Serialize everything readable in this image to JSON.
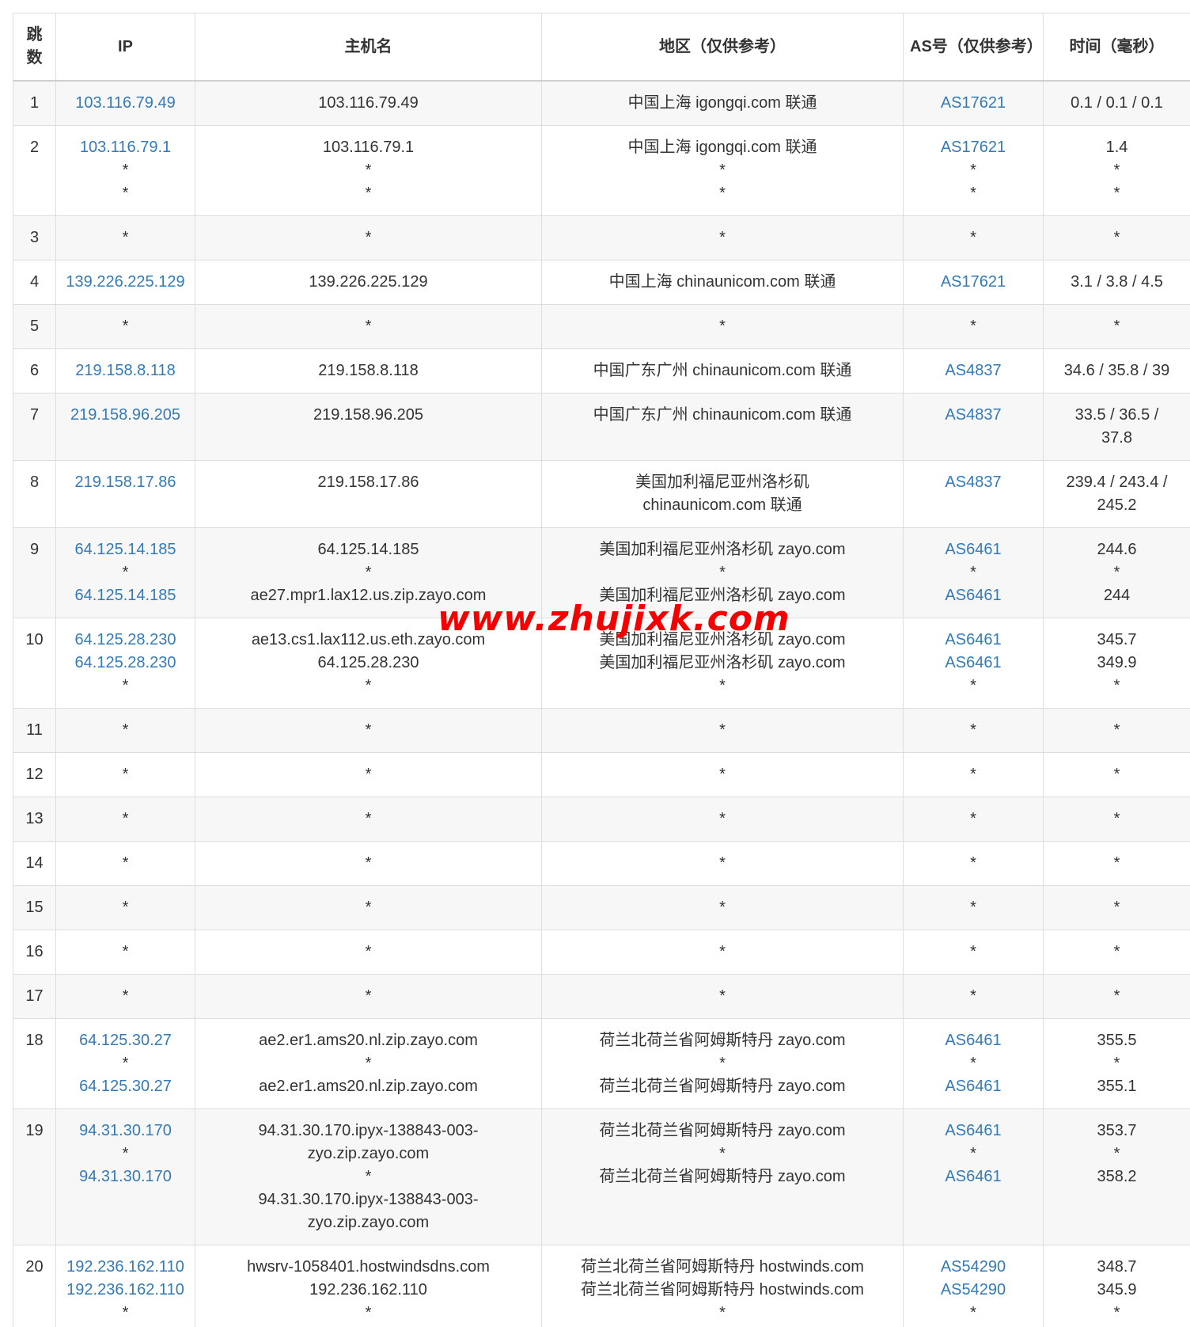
{
  "watermark": {
    "text": "www.zhujixk.com",
    "color": "#f40000"
  },
  "colors": {
    "link_blue": "#337ab7",
    "text": "#333333",
    "row_stripe": "#f7f7f7",
    "border": "#dddddd",
    "watermark_red": "#f40000"
  },
  "table": {
    "headers": [
      "跳数",
      "IP",
      "主机名",
      "地区（仅供参考）",
      "AS号（仅供参考）",
      "时间（毫秒）"
    ],
    "rows": [
      {
        "hop": "1",
        "ip": [
          "103.116.79.49"
        ],
        "host": [
          "103.116.79.49"
        ],
        "region": [
          "中国上海 igongqi.com 联通"
        ],
        "asn": [
          "AS17621"
        ],
        "time": [
          "0.1 / 0.1 / 0.1"
        ]
      },
      {
        "hop": "2",
        "ip": [
          "103.116.79.1",
          "*",
          "*"
        ],
        "host": [
          "103.116.79.1",
          "*",
          "*"
        ],
        "region": [
          "中国上海 igongqi.com 联通",
          "*",
          "*"
        ],
        "asn": [
          "AS17621",
          "*",
          "*"
        ],
        "time": [
          "1.4",
          "*",
          "*"
        ]
      },
      {
        "hop": "3",
        "ip": [
          "*"
        ],
        "host": [
          "*"
        ],
        "region": [
          "*"
        ],
        "asn": [
          "*"
        ],
        "time": [
          "*"
        ]
      },
      {
        "hop": "4",
        "ip": [
          "139.226.225.129"
        ],
        "host": [
          "139.226.225.129"
        ],
        "region": [
          "中国上海 chinaunicom.com 联通"
        ],
        "asn": [
          "AS17621"
        ],
        "time": [
          "3.1 / 3.8 / 4.5"
        ]
      },
      {
        "hop": "5",
        "ip": [
          "*"
        ],
        "host": [
          "*"
        ],
        "region": [
          "*"
        ],
        "asn": [
          "*"
        ],
        "time": [
          "*"
        ]
      },
      {
        "hop": "6",
        "ip": [
          "219.158.8.118"
        ],
        "host": [
          "219.158.8.118"
        ],
        "region": [
          "中国广东广州 chinaunicom.com 联通"
        ],
        "asn": [
          "AS4837"
        ],
        "time": [
          "34.6 / 35.8 / 39"
        ]
      },
      {
        "hop": "7",
        "ip": [
          "219.158.96.205"
        ],
        "host": [
          "219.158.96.205"
        ],
        "region": [
          "中国广东广州 chinaunicom.com 联通"
        ],
        "asn": [
          "AS4837"
        ],
        "time": [
          "33.5 / 36.5 /",
          "37.8"
        ]
      },
      {
        "hop": "8",
        "ip": [
          "219.158.17.86"
        ],
        "host": [
          "219.158.17.86"
        ],
        "region": [
          "美国加利福尼亚州洛杉矶",
          "chinaunicom.com 联通"
        ],
        "asn": [
          "AS4837"
        ],
        "time": [
          "239.4 / 243.4 /",
          "245.2"
        ]
      },
      {
        "hop": "9",
        "ip": [
          "64.125.14.185",
          "*",
          "64.125.14.185"
        ],
        "host": [
          "64.125.14.185",
          "*",
          "ae27.mpr1.lax12.us.zip.zayo.com"
        ],
        "region": [
          "美国加利福尼亚州洛杉矶 zayo.com",
          "*",
          "美国加利福尼亚州洛杉矶 zayo.com"
        ],
        "asn": [
          "AS6461",
          "*",
          "AS6461"
        ],
        "time": [
          "244.6",
          "*",
          "244"
        ]
      },
      {
        "hop": "10",
        "ip": [
          "64.125.28.230",
          "64.125.28.230",
          "*"
        ],
        "host": [
          "ae13.cs1.lax112.us.eth.zayo.com",
          "64.125.28.230",
          "*"
        ],
        "region": [
          "美国加利福尼亚州洛杉矶 zayo.com",
          "美国加利福尼亚州洛杉矶 zayo.com",
          "*"
        ],
        "asn": [
          "AS6461",
          "AS6461",
          "*"
        ],
        "time": [
          "345.7",
          "349.9",
          "*"
        ]
      },
      {
        "hop": "11",
        "ip": [
          "*"
        ],
        "host": [
          "*"
        ],
        "region": [
          "*"
        ],
        "asn": [
          "*"
        ],
        "time": [
          "*"
        ]
      },
      {
        "hop": "12",
        "ip": [
          "*"
        ],
        "host": [
          "*"
        ],
        "region": [
          "*"
        ],
        "asn": [
          "*"
        ],
        "time": [
          "*"
        ]
      },
      {
        "hop": "13",
        "ip": [
          "*"
        ],
        "host": [
          "*"
        ],
        "region": [
          "*"
        ],
        "asn": [
          "*"
        ],
        "time": [
          "*"
        ]
      },
      {
        "hop": "14",
        "ip": [
          "*"
        ],
        "host": [
          "*"
        ],
        "region": [
          "*"
        ],
        "asn": [
          "*"
        ],
        "time": [
          "*"
        ]
      },
      {
        "hop": "15",
        "ip": [
          "*"
        ],
        "host": [
          "*"
        ],
        "region": [
          "*"
        ],
        "asn": [
          "*"
        ],
        "time": [
          "*"
        ]
      },
      {
        "hop": "16",
        "ip": [
          "*"
        ],
        "host": [
          "*"
        ],
        "region": [
          "*"
        ],
        "asn": [
          "*"
        ],
        "time": [
          "*"
        ]
      },
      {
        "hop": "17",
        "ip": [
          "*"
        ],
        "host": [
          "*"
        ],
        "region": [
          "*"
        ],
        "asn": [
          "*"
        ],
        "time": [
          "*"
        ]
      },
      {
        "hop": "18",
        "ip": [
          "64.125.30.27",
          "*",
          "64.125.30.27"
        ],
        "host": [
          "ae2.er1.ams20.nl.zip.zayo.com",
          "*",
          "ae2.er1.ams20.nl.zip.zayo.com"
        ],
        "region": [
          "荷兰北荷兰省阿姆斯特丹 zayo.com",
          "*",
          "荷兰北荷兰省阿姆斯特丹 zayo.com"
        ],
        "asn": [
          "AS6461",
          "*",
          "AS6461"
        ],
        "time": [
          "355.5",
          "*",
          "355.1"
        ]
      },
      {
        "hop": "19",
        "ip": [
          "94.31.30.170",
          "*",
          "94.31.30.170"
        ],
        "host": [
          "94.31.30.170.ipyx-138843-003-",
          "zyo.zip.zayo.com",
          "*",
          "94.31.30.170.ipyx-138843-003-",
          "zyo.zip.zayo.com"
        ],
        "region": [
          "荷兰北荷兰省阿姆斯特丹 zayo.com",
          "*",
          "荷兰北荷兰省阿姆斯特丹 zayo.com"
        ],
        "asn": [
          "AS6461",
          "*",
          "AS6461"
        ],
        "time": [
          "353.7",
          "*",
          "358.2"
        ]
      },
      {
        "hop": "20",
        "ip": [
          "192.236.162.110",
          "192.236.162.110",
          "*"
        ],
        "host": [
          "hwsrv-1058401.hostwindsdns.com",
          "192.236.162.110",
          "*"
        ],
        "region": [
          "荷兰北荷兰省阿姆斯特丹 hostwinds.com",
          "荷兰北荷兰省阿姆斯特丹 hostwinds.com",
          "*"
        ],
        "asn": [
          "AS54290",
          "AS54290",
          "*"
        ],
        "time": [
          "348.7",
          "345.9",
          "*"
        ]
      }
    ]
  }
}
